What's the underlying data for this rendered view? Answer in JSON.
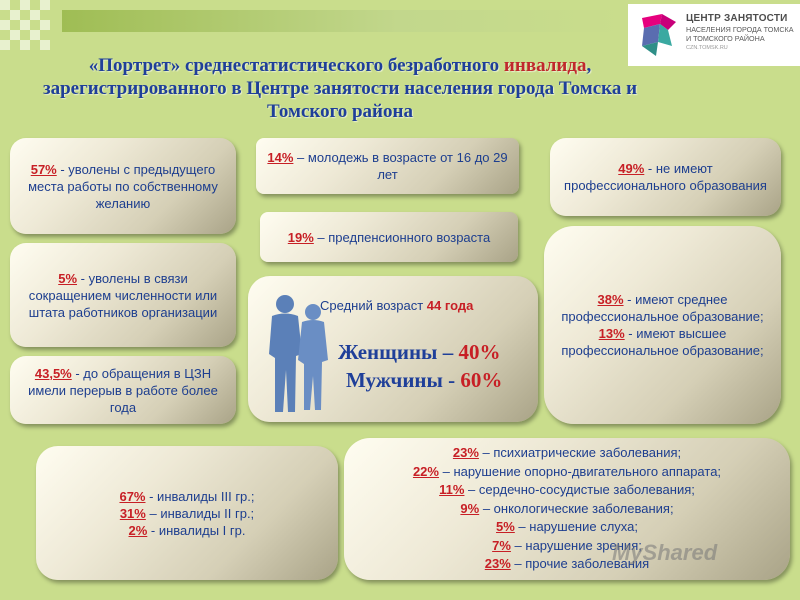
{
  "logo": {
    "title": "ЦЕНТР ЗАНЯТОСТИ",
    "subtitle_line1": "НАСЕЛЕНИЯ ГОРОДА ТОМСКА",
    "subtitle_line2": "И ТОМСКОГО РАЙОНА",
    "site": "CZN.TOMSK.RU",
    "colors": [
      "#e6007e",
      "#3aa9a1",
      "#5a6db0"
    ]
  },
  "title": {
    "part1": "«Портрет» среднестатистического безработного ",
    "highlight": "инвалида",
    "part2": ",",
    "line2": "зарегистрированного в Центре занятости населения города Томска и",
    "line3": "Томского района"
  },
  "boxes": {
    "dismissed_voluntary": {
      "pct": "57%",
      "text": " - уволены с предыдущего места работы по собственному желанию"
    },
    "dismissed_reduction": {
      "pct": "5%",
      "text": " -  уволены в связи сокращением численности или штата работников организации"
    },
    "break_in_work": {
      "pct": "43,5%",
      "text": " - до обращения в ЦЗН имели перерыв в работе более года"
    },
    "youth": {
      "pct": "14%",
      "text": " – молодежь в возрасте от 16 до 29 лет"
    },
    "preretirement": {
      "pct": "19%",
      "text": " – предпенсионного возраста"
    },
    "no_professional_education": {
      "pct": "49%",
      "text": " - не имеют профессионального образования"
    },
    "secondary_professional": {
      "pct": "38%",
      "text": " - имеют среднее профессиональное образование;"
    },
    "higher_professional": {
      "pct": "13%",
      "text": " - имеют  высшее профессиональное образование;"
    },
    "average_age": {
      "label": "Средний возраст ",
      "value": "44 года"
    },
    "women": {
      "label": "Женщины – ",
      "value": "40%"
    },
    "men": {
      "label": "Мужчины - ",
      "value": "60%"
    },
    "disability_groups": [
      {
        "pct": "67%",
        "text": " - инвалиды III гр.;"
      },
      {
        "pct": "31%",
        "text": " – инвалиды II гр.;"
      },
      {
        "pct": "2%",
        "text": " - инвалиды I гр."
      }
    ],
    "diseases": [
      {
        "pct": "23%",
        "text": " – психиатрические заболевания;"
      },
      {
        "pct": "22%",
        "text": " – нарушение опорно-двигательного аппарата;"
      },
      {
        "pct": "11%",
        "text": " – сердечно-сосудистые заболевания;"
      },
      {
        "pct": "9%",
        "text": " – онкологические заболевания;"
      },
      {
        "pct": "5%",
        "text": " – нарушение слуха;"
      },
      {
        "pct": "7%",
        "text": " – нарушение зрения;"
      },
      {
        "pct": "23%",
        "text": " – прочие заболевания"
      }
    ]
  },
  "watermark": "MyShared"
}
